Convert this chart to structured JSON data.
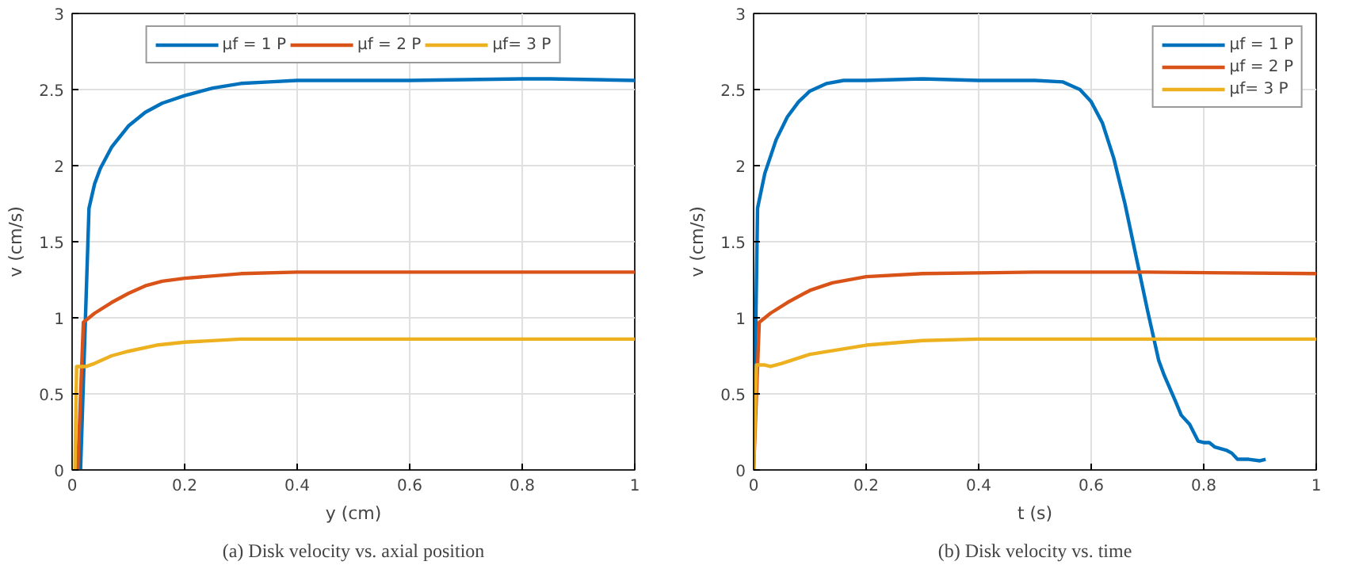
{
  "chart_data": [
    {
      "type": "line",
      "title": "(a) Disk velocity vs. axial position",
      "xlabel": "y (cm)",
      "ylabel": "v (cm/s)",
      "xlim": [
        0,
        1
      ],
      "ylim": [
        0,
        3
      ],
      "xticks": [
        0,
        0.2,
        0.4,
        0.6,
        0.8,
        1
      ],
      "yticks": [
        0,
        0.5,
        1,
        1.5,
        2,
        2.5,
        3
      ],
      "grid": true,
      "legend": "top",
      "line_style": "solid",
      "marker": "none",
      "series": [
        {
          "name": "μf = 1 P",
          "color": "#0072bd",
          "x": [
            0.015,
            0.03,
            0.04,
            0.05,
            0.07,
            0.1,
            0.13,
            0.16,
            0.2,
            0.25,
            0.3,
            0.35,
            0.4,
            0.5,
            0.6,
            0.8,
            0.85,
            1
          ],
          "values": [
            0,
            1.72,
            1.88,
            1.98,
            2.12,
            2.26,
            2.35,
            2.41,
            2.46,
            2.51,
            2.54,
            2.55,
            2.56,
            2.56,
            2.56,
            2.57,
            2.57,
            2.56
          ]
        },
        {
          "name": "μf = 2 P",
          "color": "#d95319",
          "x": [
            0.01,
            0.02,
            0.04,
            0.07,
            0.1,
            0.13,
            0.16,
            0.2,
            0.3,
            0.4,
            0.6,
            0.8,
            1
          ],
          "values": [
            0,
            0.97,
            1.03,
            1.1,
            1.16,
            1.21,
            1.24,
            1.26,
            1.29,
            1.3,
            1.3,
            1.3,
            1.3
          ]
        },
        {
          "name": "μf= 3 P",
          "color": "#edb120",
          "x": [
            0.005,
            0.008,
            0.025,
            0.04,
            0.07,
            0.1,
            0.15,
            0.2,
            0.3,
            0.4,
            1
          ],
          "values": [
            0,
            0.68,
            0.68,
            0.7,
            0.75,
            0.78,
            0.82,
            0.84,
            0.86,
            0.86,
            0.86
          ]
        }
      ]
    },
    {
      "type": "line",
      "title": "(b) Disk velocity vs. time",
      "xlabel": "t (s)",
      "ylabel": "v (cm/s)",
      "xlim": [
        0,
        1
      ],
      "ylim": [
        0,
        3
      ],
      "xticks": [
        0,
        0.2,
        0.4,
        0.6,
        0.8,
        1
      ],
      "yticks": [
        0,
        0.5,
        1,
        1.5,
        2,
        2.5,
        3
      ],
      "grid": true,
      "legend": "top right",
      "line_style": "solid",
      "marker": "none",
      "series": [
        {
          "name": "μf = 1 P",
          "color": "#0072bd",
          "x": [
            0,
            0.007,
            0.02,
            0.04,
            0.06,
            0.08,
            0.1,
            0.13,
            0.16,
            0.2,
            0.3,
            0.4,
            0.5,
            0.55,
            0.58,
            0.6,
            0.62,
            0.64,
            0.66,
            0.68,
            0.7,
            0.72,
            0.73,
            0.75,
            0.76,
            0.775,
            0.79,
            0.8,
            0.81,
            0.82,
            0.84,
            0.85,
            0.86,
            0.88,
            0.9,
            0.91
          ],
          "values": [
            0,
            1.72,
            1.95,
            2.17,
            2.32,
            2.42,
            2.49,
            2.54,
            2.56,
            2.56,
            2.57,
            2.56,
            2.56,
            2.55,
            2.5,
            2.42,
            2.28,
            2.05,
            1.75,
            1.4,
            1.05,
            0.72,
            0.62,
            0.45,
            0.36,
            0.3,
            0.19,
            0.18,
            0.18,
            0.15,
            0.13,
            0.11,
            0.07,
            0.07,
            0.06,
            0.07
          ]
        },
        {
          "name": "μf = 2 P",
          "color": "#d95319",
          "x": [
            0,
            0.01,
            0.03,
            0.06,
            0.1,
            0.14,
            0.2,
            0.3,
            0.5,
            0.7,
            1
          ],
          "values": [
            0,
            0.97,
            1.03,
            1.1,
            1.18,
            1.23,
            1.27,
            1.29,
            1.3,
            1.3,
            1.29
          ]
        },
        {
          "name": "μf= 3 P",
          "color": "#edb120",
          "x": [
            0,
            0.005,
            0.02,
            0.03,
            0.05,
            0.1,
            0.2,
            0.3,
            0.4,
            0.6,
            1
          ],
          "values": [
            0,
            0.69,
            0.69,
            0.68,
            0.7,
            0.76,
            0.82,
            0.85,
            0.86,
            0.86,
            0.86
          ]
        }
      ]
    }
  ]
}
